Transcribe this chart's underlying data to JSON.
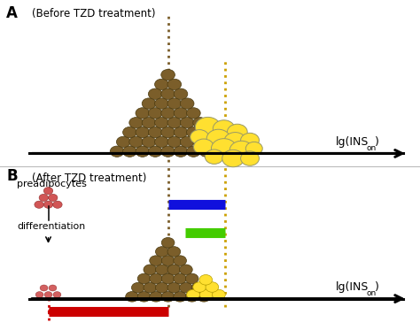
{
  "bg_color": "#ffffff",
  "text_color": "#000000",
  "brown_color": "#7B5E2A",
  "brown_edge": "#4a3a10",
  "yellow_color": "#FFE030",
  "yellow_light": "#FFEE88",
  "yellow_edge": "#B8A000",
  "dashed_brown_color": "#7B5E2A",
  "dashed_yellow_color": "#CCA000",
  "arrow_blue": "#1010DD",
  "arrow_green": "#44CC00",
  "arrow_red": "#CC0000",
  "pread_color": "#CC4444",
  "pread_edge": "#882222",
  "panel_A_label": "A",
  "panel_B_label": "B",
  "panel_A_title": "(Before TZD treatment)",
  "panel_B_title": "(After TZD treatment)",
  "label_preadipocytes": "preadipocytes",
  "label_differentiation": "differentiation",
  "label_axis": "lg(INS",
  "label_sub": "on",
  "label_close": ")"
}
